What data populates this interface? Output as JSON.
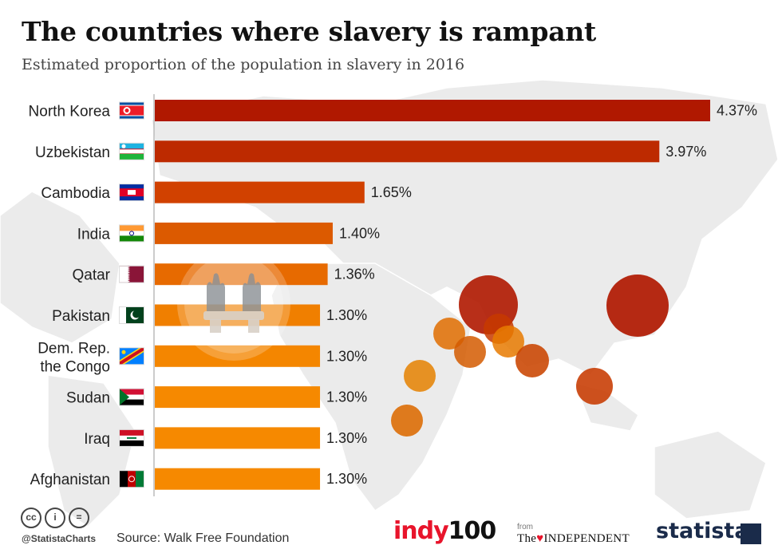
{
  "header": {
    "title": "The countries where slavery is rampant",
    "subtitle": "Estimated proportion of the population in slavery in 2016"
  },
  "chart_data": {
    "type": "bar",
    "orientation": "horizontal",
    "title": "The countries where slavery is rampant",
    "subtitle": "Estimated proportion of the population in slavery in 2016",
    "unit": "%",
    "xlim": [
      0,
      4.37
    ],
    "categories": [
      "North Korea",
      "Uzbekistan",
      "Cambodia",
      "India",
      "Qatar",
      "Pakistan",
      "Dem. Rep. the Congo",
      "Sudan",
      "Iraq",
      "Afghanistan"
    ],
    "category_lines": [
      [
        "North Korea"
      ],
      [
        "Uzbekistan"
      ],
      [
        "Cambodia"
      ],
      [
        "India"
      ],
      [
        "Qatar"
      ],
      [
        "Pakistan"
      ],
      [
        "Dem. Rep.",
        "the Congo"
      ],
      [
        "Sudan"
      ],
      [
        "Iraq"
      ],
      [
        "Afghanistan"
      ]
    ],
    "values": [
      4.37,
      3.97,
      1.65,
      1.4,
      1.36,
      1.3,
      1.3,
      1.3,
      1.3,
      1.3
    ],
    "value_labels": [
      "4.37%",
      "3.97%",
      "1.65%",
      "1.40%",
      "1.36%",
      "1.30%",
      "1.30%",
      "1.30%",
      "1.30%",
      "1.30%"
    ],
    "bar_colors": [
      "#b01800",
      "#bd2a00",
      "#d14100",
      "#dc5a00",
      "#e76a00",
      "#f07f00",
      "#f48600",
      "#f68900",
      "#f68900",
      "#f68900"
    ],
    "flags": [
      "north-korea-flag",
      "uzbekistan-flag",
      "cambodia-flag",
      "india-flag",
      "qatar-flag",
      "pakistan-flag",
      "dr-congo-flag",
      "sudan-flag",
      "iraq-flag",
      "afghanistan-flag"
    ],
    "background_map": "world map with circles sized by slavery prevalence",
    "grid": false
  },
  "footer": {
    "license_icons": [
      "cc-icon",
      "by-icon",
      "nd-icon"
    ],
    "license_text": [
      "cc",
      "i",
      "="
    ],
    "handle": "@StatistaCharts",
    "source": "Source: Walk Free Foundation",
    "indy_a": "indy",
    "indy_b": "100",
    "from": "from",
    "independent_a": "The",
    "independent_b": "INDEPENDENT",
    "statista": "statista"
  }
}
